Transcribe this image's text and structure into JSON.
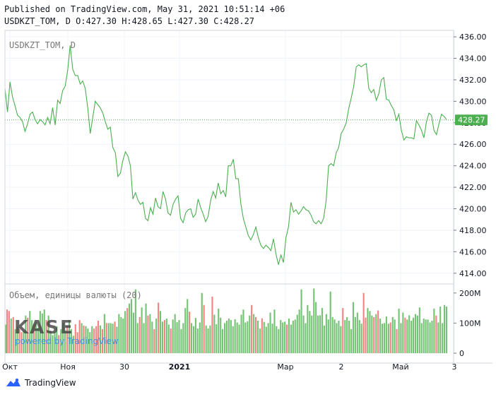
{
  "header": {
    "published": "Published on TradingView.com, May 31, 2021 10:51:14 +06",
    "symbol": "USDKZT_TOM",
    "interval": "D",
    "ohlc": "O:427.30 H:428.65 L:427.30 C:428.27"
  },
  "pane_label": "USDKZT_TOM, D",
  "volume_label": "Объем, единицы валюты (20)",
  "watermark": {
    "logo": "KASE",
    "powered": "powered by TradingView"
  },
  "footer": {
    "brand": "TradingView"
  },
  "colors": {
    "line": "#4caf50",
    "up": "#5cb85c",
    "down": "#ef6f6c",
    "last_price_bg": "#4caf50",
    "grid": "#f0f3fa",
    "axis": "#787b86"
  },
  "chart_data": {
    "type": "line",
    "title": "USDKZT_TOM, D",
    "price_ticks": [
      "436.00",
      "434.00",
      "432.00",
      "430.00",
      "428.00",
      "426.00",
      "424.00",
      "422.00",
      "420.00",
      "418.00",
      "416.00",
      "414.00"
    ],
    "price_range": [
      413.0,
      436.6
    ],
    "last_price": 428.27,
    "last_price_label": "428.27",
    "volume_ticks": [
      "200M",
      "100M",
      "0"
    ],
    "volume_range": [
      0,
      230000000
    ],
    "x_labels": [
      "Окт",
      "Ноя",
      "30",
      "2021",
      "Мар",
      "2",
      "Май",
      "3"
    ],
    "price": [
      431.2,
      429.0,
      431.8,
      430.4,
      429.6,
      428.7,
      428.5,
      428.1,
      427.2,
      427.9,
      428.8,
      429.0,
      428.3,
      427.9,
      428.3,
      428.1,
      427.8,
      428.5,
      427.9,
      429.4,
      427.8,
      430.1,
      429.8,
      431.0,
      431.4,
      432.9,
      435.2,
      433.0,
      432.4,
      432.4,
      431.6,
      431.9,
      431.2,
      429.4,
      427.0,
      428.5,
      430.0,
      429.7,
      429.4,
      428.9,
      428.1,
      427.4,
      427.6,
      425.7,
      425.2,
      423.0,
      423.3,
      424.5,
      425.3,
      424.9,
      424.0,
      420.9,
      421.5,
      420.8,
      420.4,
      420.6,
      419.1,
      418.9,
      420.1,
      419.5,
      421.0,
      420.2,
      420.0,
      421.6,
      420.9,
      419.6,
      419.4,
      420.4,
      420.9,
      421.2,
      419.1,
      418.7,
      419.6,
      419.9,
      420.0,
      419.2,
      419.5,
      420.9,
      420.1,
      419.5,
      418.8,
      419.3,
      420.8,
      421.6,
      421.0,
      422.4,
      421.4,
      421.7,
      421.1,
      424.0,
      424.0,
      424.6,
      422.8,
      422.8,
      420.5,
      419.1,
      418.3,
      417.5,
      417.1,
      417.6,
      418.3,
      417.3,
      416.6,
      416.3,
      416.6,
      416.4,
      416.1,
      417.2,
      415.8,
      414.8,
      415.7,
      415.0,
      417.3,
      418.3,
      420.6,
      419.7,
      419.9,
      419.5,
      419.8,
      420.2,
      419.9,
      419.8,
      419.4,
      418.8,
      418.6,
      418.9,
      418.6,
      419.1,
      420.7,
      424.0,
      424.2,
      424.0,
      425.2,
      425.7,
      427.0,
      427.4,
      428.0,
      429.3,
      430.3,
      431.4,
      433.2,
      433.4,
      433.2,
      433.4,
      433.5,
      431.2,
      430.8,
      431.1,
      430.1,
      430.7,
      432.0,
      432.2,
      430.2,
      430.1,
      429.6,
      429.2,
      428.2,
      428.8,
      427.3,
      426.4,
      426.7,
      426.6,
      426.6,
      426.5,
      428.2,
      427.8,
      427.3,
      426.6,
      428.1,
      428.9,
      428.7,
      427.3,
      426.9,
      427.9,
      428.8,
      428.6,
      428.3
    ],
    "volume": [
      [
        95,
        0
      ],
      [
        145,
        1
      ],
      [
        140,
        1
      ],
      [
        115,
        0
      ],
      [
        120,
        1
      ],
      [
        80,
        0
      ],
      [
        88,
        0
      ],
      [
        80,
        1
      ],
      [
        70,
        1
      ],
      [
        75,
        0
      ],
      [
        125,
        0
      ],
      [
        118,
        1
      ],
      [
        140,
        0
      ],
      [
        110,
        0
      ],
      [
        98,
        1
      ],
      [
        102,
        0
      ],
      [
        85,
        0
      ],
      [
        140,
        0
      ],
      [
        132,
        0
      ],
      [
        145,
        0
      ],
      [
        110,
        1
      ],
      [
        125,
        0
      ],
      [
        75,
        0
      ],
      [
        60,
        0
      ],
      [
        70,
        0
      ],
      [
        90,
        0
      ],
      [
        60,
        1
      ],
      [
        80,
        0
      ],
      [
        100,
        0
      ],
      [
        75,
        0
      ],
      [
        92,
        1
      ],
      [
        110,
        0
      ],
      [
        80,
        0
      ],
      [
        58,
        0
      ],
      [
        96,
        1
      ],
      [
        70,
        1
      ],
      [
        110,
        1
      ],
      [
        100,
        0
      ],
      [
        92,
        1
      ],
      [
        90,
        0
      ],
      [
        82,
        0
      ],
      [
        70,
        0
      ],
      [
        90,
        0
      ],
      [
        82,
        1
      ],
      [
        90,
        1
      ],
      [
        108,
        1
      ],
      [
        92,
        0
      ],
      [
        80,
        1
      ],
      [
        130,
        0
      ],
      [
        100,
        1
      ],
      [
        100,
        0
      ],
      [
        100,
        0
      ],
      [
        98,
        0
      ],
      [
        105,
        1
      ],
      [
        88,
        0
      ],
      [
        130,
        0
      ],
      [
        120,
        0
      ],
      [
        115,
        0
      ],
      [
        140,
        0
      ],
      [
        150,
        1
      ],
      [
        165,
        0
      ],
      [
        180,
        0
      ],
      [
        135,
        0
      ],
      [
        212,
        0
      ],
      [
        100,
        0
      ],
      [
        120,
        1
      ],
      [
        152,
        0
      ],
      [
        100,
        0
      ],
      [
        165,
        0
      ],
      [
        125,
        1
      ],
      [
        130,
        0
      ],
      [
        105,
        0
      ],
      [
        80,
        1
      ],
      [
        115,
        0
      ],
      [
        168,
        1
      ],
      [
        140,
        0
      ],
      [
        105,
        0
      ],
      [
        110,
        1
      ],
      [
        115,
        0
      ],
      [
        95,
        0
      ],
      [
        82,
        1
      ],
      [
        112,
        0
      ],
      [
        130,
        0
      ],
      [
        103,
        0
      ],
      [
        110,
        0
      ],
      [
        80,
        0
      ],
      [
        100,
        0
      ],
      [
        150,
        0
      ],
      [
        180,
        0
      ],
      [
        138,
        1
      ],
      [
        100,
        0
      ],
      [
        90,
        0
      ],
      [
        117,
        0
      ],
      [
        82,
        0
      ],
      [
        102,
        0
      ],
      [
        200,
        0
      ],
      [
        160,
        1
      ],
      [
        92,
        0
      ],
      [
        82,
        0
      ],
      [
        92,
        0
      ],
      [
        188,
        1
      ],
      [
        128,
        0
      ],
      [
        96,
        0
      ],
      [
        148,
        0
      ],
      [
        118,
        0
      ],
      [
        80,
        0
      ],
      [
        100,
        0
      ],
      [
        108,
        0
      ],
      [
        115,
        0
      ],
      [
        110,
        0
      ],
      [
        90,
        0
      ],
      [
        113,
        0
      ],
      [
        102,
        0
      ],
      [
        95,
        0
      ],
      [
        128,
        0
      ],
      [
        145,
        0
      ],
      [
        102,
        0
      ],
      [
        106,
        0
      ],
      [
        125,
        0
      ],
      [
        160,
        1
      ],
      [
        130,
        0
      ],
      [
        120,
        1
      ],
      [
        108,
        0
      ],
      [
        82,
        0
      ],
      [
        116,
        1
      ],
      [
        104,
        0
      ],
      [
        88,
        0
      ],
      [
        100,
        0
      ],
      [
        135,
        0
      ],
      [
        98,
        0
      ],
      [
        145,
        0
      ],
      [
        90,
        0
      ],
      [
        80,
        0
      ],
      [
        110,
        0
      ],
      [
        102,
        0
      ],
      [
        105,
        0
      ],
      [
        95,
        1
      ],
      [
        115,
        0
      ],
      [
        95,
        0
      ],
      [
        108,
        0
      ],
      [
        112,
        0
      ],
      [
        128,
        0
      ],
      [
        145,
        0
      ],
      [
        212,
        0
      ],
      [
        125,
        0
      ],
      [
        100,
        0
      ],
      [
        160,
        0
      ],
      [
        140,
        0
      ],
      [
        125,
        0
      ],
      [
        215,
        0
      ],
      [
        170,
        0
      ],
      [
        125,
        0
      ],
      [
        126,
        0
      ],
      [
        150,
        0
      ],
      [
        92,
        0
      ],
      [
        130,
        0
      ],
      [
        112,
        0
      ],
      [
        205,
        0
      ],
      [
        120,
        0
      ],
      [
        112,
        0
      ],
      [
        100,
        0
      ],
      [
        108,
        0
      ],
      [
        90,
        0
      ],
      [
        150,
        1
      ],
      [
        110,
        0
      ],
      [
        120,
        0
      ],
      [
        108,
        0
      ],
      [
        80,
        0
      ],
      [
        170,
        0
      ],
      [
        120,
        0
      ],
      [
        135,
        0
      ],
      [
        110,
        0
      ],
      [
        98,
        0
      ],
      [
        200,
        1
      ],
      [
        118,
        1
      ],
      [
        150,
        0
      ],
      [
        140,
        0
      ],
      [
        125,
        0
      ],
      [
        120,
        1
      ],
      [
        130,
        0
      ],
      [
        142,
        1
      ],
      [
        115,
        0
      ],
      [
        98,
        0
      ],
      [
        100,
        0
      ],
      [
        122,
        0
      ],
      [
        98,
        0
      ],
      [
        102,
        1
      ],
      [
        120,
        0
      ],
      [
        112,
        0
      ],
      [
        80,
        1
      ],
      [
        148,
        0
      ],
      [
        100,
        0
      ],
      [
        135,
        0
      ],
      [
        118,
        1
      ],
      [
        112,
        0
      ],
      [
        126,
        0
      ],
      [
        108,
        0
      ],
      [
        118,
        0
      ],
      [
        130,
        0
      ],
      [
        125,
        0
      ],
      [
        152,
        0
      ],
      [
        100,
        0
      ],
      [
        115,
        0
      ],
      [
        112,
        0
      ],
      [
        112,
        0
      ],
      [
        102,
        0
      ],
      [
        108,
        0
      ],
      [
        148,
        0
      ],
      [
        125,
        1
      ],
      [
        102,
        0
      ],
      [
        155,
        0
      ],
      [
        100,
        0
      ],
      [
        160,
        0
      ],
      [
        155,
        0
      ]
    ]
  }
}
